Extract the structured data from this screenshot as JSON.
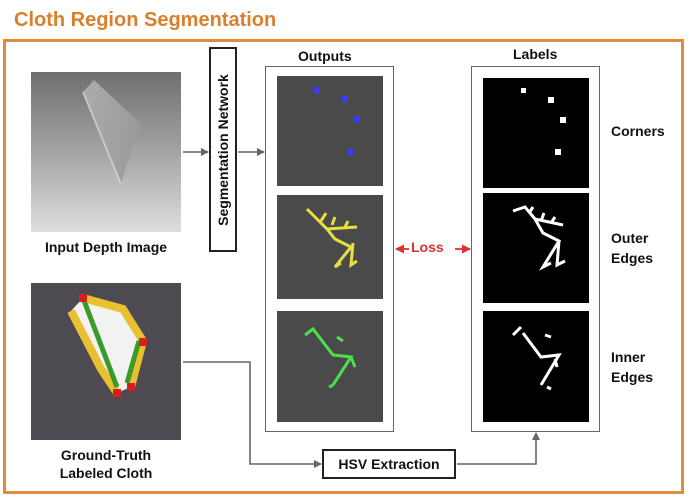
{
  "title": "Cloth Region Segmentation",
  "input": {
    "caption": "Input Depth Image"
  },
  "ground_truth": {
    "caption_line1": "Ground-Truth",
    "caption_line2": "Labeled Cloth"
  },
  "network": {
    "label": "Segmentation Network"
  },
  "outputs": {
    "header": "Outputs"
  },
  "labels": {
    "header": "Labels"
  },
  "loss": {
    "label": "Loss"
  },
  "hsv": {
    "label": "HSV Extraction"
  },
  "rows": {
    "corners": {
      "line1": "Corners"
    },
    "outer": {
      "line1": "Outer",
      "line2": "Edges"
    },
    "inner": {
      "line1": "Inner",
      "line2": "Edges"
    }
  },
  "colors": {
    "title": "#d9802e",
    "frame": "#e38b3c",
    "loss": "#e03030",
    "corners_output": "#3b3bff",
    "outer_output": "#e8e040",
    "inner_output": "#4de04d",
    "cloth_green": "#3a9a2a",
    "cloth_yellow": "#e8c030",
    "cloth_red": "#d42020"
  }
}
